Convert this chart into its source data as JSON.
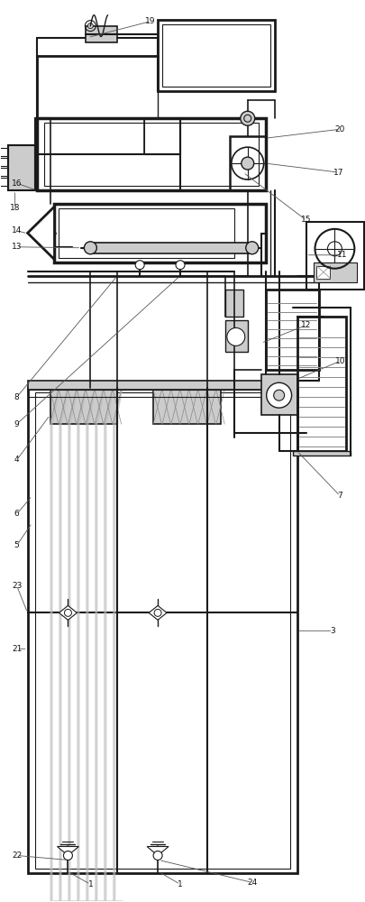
{
  "bg_color": "#ffffff",
  "lc": "#1a1a1a",
  "gc": "#888888",
  "lgc": "#cccccc",
  "mlgc": "#aaaaaa",
  "figsize": [
    4.06,
    10.0
  ],
  "dpi": 100
}
